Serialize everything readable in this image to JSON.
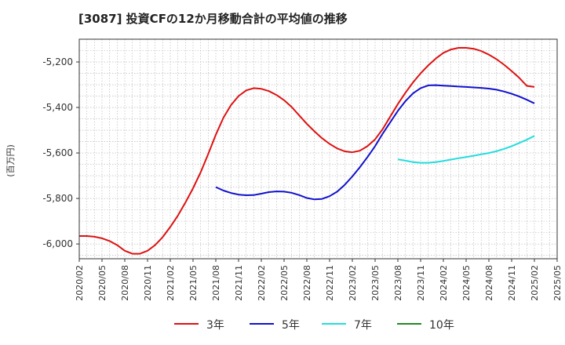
{
  "chart_data": {
    "type": "line",
    "title": "[3087]  投資CFの12か月移動合計の平均値の推移",
    "ylabel": "(百万円)",
    "xlabel": "",
    "ylim": [
      -6065,
      -5100
    ],
    "yticks": [
      -5200,
      -5400,
      -5600,
      -5800,
      -6000
    ],
    "ytick_labels": [
      "-5,200",
      "-5,400",
      "-5,600",
      "-5,800",
      "-6,000"
    ],
    "xticks": [
      "2020/02",
      "2020/05",
      "2020/08",
      "2020/11",
      "2021/02",
      "2021/05",
      "2021/08",
      "2021/11",
      "2022/02",
      "2022/05",
      "2022/08",
      "2022/11",
      "2023/02",
      "2023/05",
      "2023/08",
      "2023/11",
      "2024/02",
      "2024/05",
      "2024/08",
      "2024/11",
      "2025/02",
      "2025/05"
    ],
    "grid": true,
    "legend_position": "bottom",
    "series": [
      {
        "name": "3年",
        "color": "#dd1111",
        "points": [
          [
            "2020/02",
            -5965
          ],
          [
            "2020/03",
            -5965
          ],
          [
            "2020/04",
            -5968
          ],
          [
            "2020/05",
            -5975
          ],
          [
            "2020/06",
            -5987
          ],
          [
            "2020/07",
            -6005
          ],
          [
            "2020/08",
            -6030
          ],
          [
            "2020/09",
            -6043
          ],
          [
            "2020/10",
            -6043
          ],
          [
            "2020/11",
            -6030
          ],
          [
            "2020/12",
            -6005
          ],
          [
            "2021/01",
            -5970
          ],
          [
            "2021/02",
            -5925
          ],
          [
            "2021/03",
            -5875
          ],
          [
            "2021/04",
            -5818
          ],
          [
            "2021/05",
            -5755
          ],
          [
            "2021/06",
            -5685
          ],
          [
            "2021/07",
            -5605
          ],
          [
            "2021/08",
            -5520
          ],
          [
            "2021/09",
            -5445
          ],
          [
            "2021/10",
            -5390
          ],
          [
            "2021/11",
            -5350
          ],
          [
            "2021/12",
            -5325
          ],
          [
            "2022/01",
            -5315
          ],
          [
            "2022/02",
            -5318
          ],
          [
            "2022/03",
            -5328
          ],
          [
            "2022/04",
            -5345
          ],
          [
            "2022/05",
            -5368
          ],
          [
            "2022/06",
            -5398
          ],
          [
            "2022/07",
            -5435
          ],
          [
            "2022/08",
            -5472
          ],
          [
            "2022/09",
            -5505
          ],
          [
            "2022/10",
            -5535
          ],
          [
            "2022/11",
            -5560
          ],
          [
            "2022/12",
            -5580
          ],
          [
            "2023/01",
            -5593
          ],
          [
            "2023/02",
            -5597
          ],
          [
            "2023/03",
            -5590
          ],
          [
            "2023/04",
            -5570
          ],
          [
            "2023/05",
            -5540
          ],
          [
            "2023/06",
            -5495
          ],
          [
            "2023/07",
            -5440
          ],
          [
            "2023/08",
            -5385
          ],
          [
            "2023/09",
            -5335
          ],
          [
            "2023/10",
            -5290
          ],
          [
            "2023/11",
            -5250
          ],
          [
            "2023/12",
            -5215
          ],
          [
            "2024/01",
            -5185
          ],
          [
            "2024/02",
            -5160
          ],
          [
            "2024/03",
            -5145
          ],
          [
            "2024/04",
            -5138
          ],
          [
            "2024/05",
            -5138
          ],
          [
            "2024/06",
            -5142
          ],
          [
            "2024/07",
            -5152
          ],
          [
            "2024/08",
            -5168
          ],
          [
            "2024/09",
            -5188
          ],
          [
            "2024/10",
            -5212
          ],
          [
            "2024/11",
            -5240
          ],
          [
            "2024/12",
            -5270
          ],
          [
            "2025/01",
            -5305
          ],
          [
            "2025/02",
            -5310
          ]
        ]
      },
      {
        "name": "5年",
        "color": "#1111cc",
        "points": [
          [
            "2021/08",
            -5750
          ],
          [
            "2021/09",
            -5765
          ],
          [
            "2021/10",
            -5776
          ],
          [
            "2021/11",
            -5783
          ],
          [
            "2021/12",
            -5786
          ],
          [
            "2022/01",
            -5785
          ],
          [
            "2022/02",
            -5779
          ],
          [
            "2022/03",
            -5772
          ],
          [
            "2022/04",
            -5769
          ],
          [
            "2022/05",
            -5770
          ],
          [
            "2022/06",
            -5775
          ],
          [
            "2022/07",
            -5785
          ],
          [
            "2022/08",
            -5798
          ],
          [
            "2022/09",
            -5804
          ],
          [
            "2022/10",
            -5802
          ],
          [
            "2022/11",
            -5790
          ],
          [
            "2022/12",
            -5770
          ],
          [
            "2023/01",
            -5740
          ],
          [
            "2023/02",
            -5703
          ],
          [
            "2023/03",
            -5662
          ],
          [
            "2023/04",
            -5618
          ],
          [
            "2023/05",
            -5570
          ],
          [
            "2023/06",
            -5515
          ],
          [
            "2023/07",
            -5465
          ],
          [
            "2023/08",
            -5415
          ],
          [
            "2023/09",
            -5372
          ],
          [
            "2023/10",
            -5338
          ],
          [
            "2023/11",
            -5315
          ],
          [
            "2023/12",
            -5303
          ],
          [
            "2024/01",
            -5302
          ],
          [
            "2024/02",
            -5304
          ],
          [
            "2024/03",
            -5306
          ],
          [
            "2024/04",
            -5308
          ],
          [
            "2024/05",
            -5310
          ],
          [
            "2024/06",
            -5312
          ],
          [
            "2024/07",
            -5314
          ],
          [
            "2024/08",
            -5317
          ],
          [
            "2024/09",
            -5322
          ],
          [
            "2024/10",
            -5330
          ],
          [
            "2024/11",
            -5340
          ],
          [
            "2024/12",
            -5352
          ],
          [
            "2025/01",
            -5366
          ],
          [
            "2025/02",
            -5382
          ]
        ]
      },
      {
        "name": "7年",
        "color": "#22dddd",
        "points": [
          [
            "2023/08",
            -5628
          ],
          [
            "2023/09",
            -5634
          ],
          [
            "2023/10",
            -5640
          ],
          [
            "2023/11",
            -5643
          ],
          [
            "2023/12",
            -5643
          ],
          [
            "2024/01",
            -5640
          ],
          [
            "2024/02",
            -5635
          ],
          [
            "2024/03",
            -5629
          ],
          [
            "2024/04",
            -5623
          ],
          [
            "2024/05",
            -5618
          ],
          [
            "2024/06",
            -5612
          ],
          [
            "2024/07",
            -5606
          ],
          [
            "2024/08",
            -5600
          ],
          [
            "2024/09",
            -5592
          ],
          [
            "2024/10",
            -5582
          ],
          [
            "2024/11",
            -5570
          ],
          [
            "2024/12",
            -5556
          ],
          [
            "2025/01",
            -5542
          ],
          [
            "2025/02",
            -5525
          ]
        ]
      },
      {
        "name": "10年",
        "color": "#228822",
        "points": []
      }
    ]
  }
}
